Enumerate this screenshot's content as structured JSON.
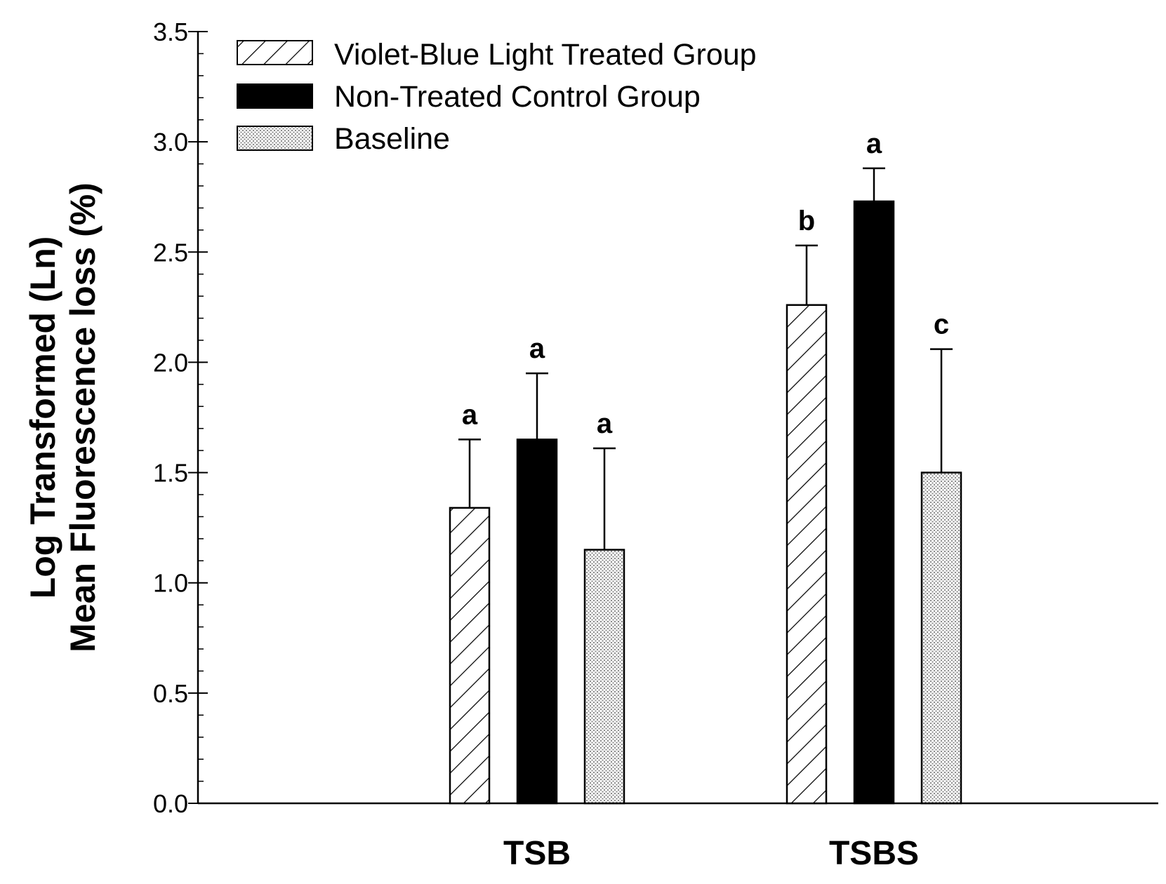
{
  "chart_data": {
    "type": "bar",
    "title": "",
    "xlabel": "",
    "ylabel_lines": [
      "Log Transformed (Ln)",
      "Mean Fluorescence loss (%)"
    ],
    "categories": [
      "TSB",
      "TSBS"
    ],
    "ylim": [
      0,
      3.5
    ],
    "yticks": [
      "0.0",
      "0.5",
      "1.0",
      "1.5",
      "2.0",
      "2.5",
      "3.0",
      "3.5"
    ],
    "ytick_values": [
      0,
      0.5,
      1.0,
      1.5,
      2.0,
      2.5,
      3.0,
      3.5
    ],
    "legend_position": "top-left",
    "series": [
      {
        "name": "Violet-Blue Light Treated Group",
        "pattern": "hatch",
        "values": [
          1.34,
          2.26
        ],
        "errors": [
          0.31,
          0.27
        ],
        "significance": [
          "a",
          "b"
        ]
      },
      {
        "name": "Non-Treated Control Group",
        "pattern": "solid",
        "values": [
          1.65,
          2.73
        ],
        "errors": [
          0.3,
          0.15
        ],
        "significance": [
          "a",
          "a"
        ]
      },
      {
        "name": "Baseline",
        "pattern": "dots",
        "values": [
          1.15,
          1.5
        ],
        "errors": [
          0.46,
          0.56
        ],
        "significance": [
          "a",
          "c"
        ]
      }
    ],
    "colors": {
      "ink": "#000000",
      "background": "#ffffff",
      "dots": "#8a8a8a"
    }
  }
}
